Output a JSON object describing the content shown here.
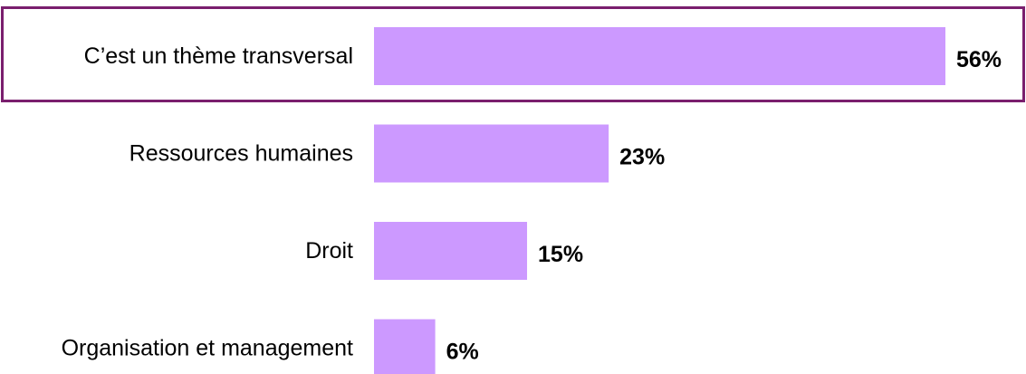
{
  "chart_data": {
    "type": "bar",
    "orientation": "horizontal",
    "categories": [
      "C’est un thème transversal",
      "Ressources humaines",
      "Droit",
      "Organisation et management"
    ],
    "values": [
      56,
      23,
      15,
      6
    ],
    "value_labels": [
      "56%",
      "23%",
      "15%",
      "6%"
    ],
    "unit": "%",
    "xlim": [
      0,
      56
    ],
    "grid": false,
    "highlighted_category": "C’est un thème transversal",
    "title": "",
    "xlabel": "",
    "ylabel": ""
  },
  "colors": {
    "bar": "#cc99ff",
    "highlight_border": "#7a1f6e",
    "text": "#000000"
  }
}
